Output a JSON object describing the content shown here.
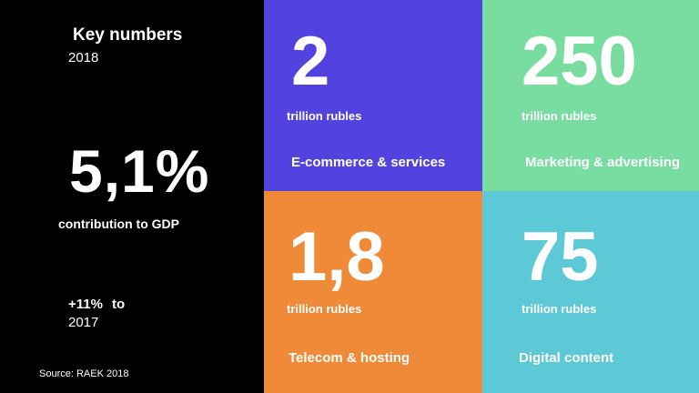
{
  "summary": {
    "title": "Key numbers",
    "year": "2018",
    "big_value": "5,1%",
    "big_label": "contribution to GDP",
    "growth_value": "+11%",
    "growth_to": "to",
    "growth_year": "2017",
    "source": "Source: RAEK 2018"
  },
  "tiles": [
    {
      "value": "2",
      "unit": "trillion rubles",
      "category": "E-commerce & services",
      "color": "#5243e0"
    },
    {
      "value": "250",
      "unit": "trillion rubles",
      "category": "Marketing & advertising",
      "color": "#79dca0"
    },
    {
      "value": "1,8",
      "unit": "trillion rubles",
      "category": "Telecom & hosting",
      "color": "#ef8a38"
    },
    {
      "value": "75",
      "unit": "trillion rubles",
      "category": "Digital content",
      "color": "#5ec9d6"
    }
  ]
}
